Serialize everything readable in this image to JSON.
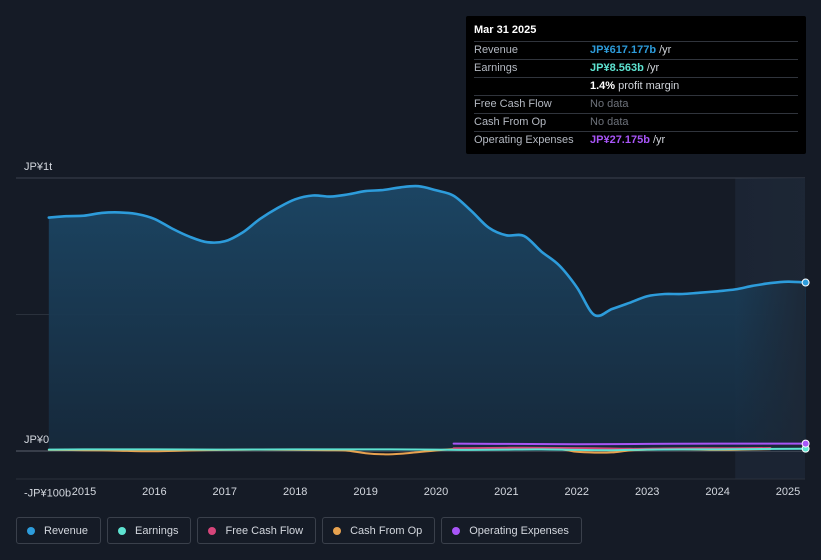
{
  "tooltip": {
    "date": "Mar 31 2025",
    "rows": [
      {
        "label": "Revenue",
        "value": "JP¥617.177b",
        "unit": " /yr",
        "color": "#2d9cdb"
      },
      {
        "label": "Earnings",
        "value": "JP¥8.563b",
        "unit": " /yr",
        "color": "#5ee3d1"
      },
      {
        "label": "",
        "value": "1.4%",
        "unit": " profit margin",
        "color": "#ffffff"
      },
      {
        "label": "Free Cash Flow",
        "value": "No data",
        "unit": "",
        "color": "#6d727b"
      },
      {
        "label": "Cash From Op",
        "value": "No data",
        "unit": "",
        "color": "#6d727b"
      },
      {
        "label": "Operating Expenses",
        "value": "JP¥27.175b",
        "unit": " /yr",
        "color": "#a855f7"
      }
    ]
  },
  "legend": [
    {
      "label": "Revenue",
      "color": "#2d9cdb"
    },
    {
      "label": "Earnings",
      "color": "#5ee3d1"
    },
    {
      "label": "Free Cash Flow",
      "color": "#d6457a"
    },
    {
      "label": "Cash From Op",
      "color": "#e8a24f"
    },
    {
      "label": "Operating Expenses",
      "color": "#a855f7"
    }
  ],
  "chart_data": {
    "type": "area",
    "y_tick_labels": [
      {
        "label": "JP¥1t",
        "value": 1000
      },
      {
        "label": "JP¥0",
        "value": 0
      },
      {
        "label": "-JP¥100b",
        "value": -100
      }
    ],
    "ylim": [
      -100,
      1000
    ],
    "x_ticks": [
      2015,
      2016,
      2017,
      2018,
      2019,
      2020,
      2021,
      2022,
      2023,
      2024,
      2025
    ],
    "xlim": [
      2014.5,
      2025.25
    ],
    "forecast_start": 2024.25,
    "series": [
      {
        "name": "Revenue",
        "color": "#2d9cdb",
        "fill": true,
        "points": [
          [
            2014.5,
            855
          ],
          [
            2014.75,
            860
          ],
          [
            2015,
            862
          ],
          [
            2015.25,
            872
          ],
          [
            2015.5,
            874
          ],
          [
            2015.75,
            868
          ],
          [
            2016,
            850
          ],
          [
            2016.25,
            815
          ],
          [
            2016.5,
            785
          ],
          [
            2016.75,
            765
          ],
          [
            2017,
            768
          ],
          [
            2017.25,
            800
          ],
          [
            2017.5,
            850
          ],
          [
            2017.75,
            890
          ],
          [
            2018,
            922
          ],
          [
            2018.25,
            936
          ],
          [
            2018.5,
            932
          ],
          [
            2018.75,
            940
          ],
          [
            2019,
            952
          ],
          [
            2019.25,
            956
          ],
          [
            2019.5,
            966
          ],
          [
            2019.75,
            970
          ],
          [
            2020,
            955
          ],
          [
            2020.25,
            935
          ],
          [
            2020.5,
            880
          ],
          [
            2020.75,
            818
          ],
          [
            2021,
            790
          ],
          [
            2021.25,
            788
          ],
          [
            2021.5,
            730
          ],
          [
            2021.75,
            680
          ],
          [
            2022,
            600
          ],
          [
            2022.25,
            498
          ],
          [
            2022.5,
            520
          ],
          [
            2022.75,
            543
          ],
          [
            2023,
            567
          ],
          [
            2023.25,
            575
          ],
          [
            2023.5,
            575
          ],
          [
            2023.75,
            580
          ],
          [
            2024,
            585
          ],
          [
            2024.25,
            592
          ],
          [
            2024.5,
            605
          ],
          [
            2024.75,
            615
          ],
          [
            2025,
            620
          ],
          [
            2025.25,
            617
          ]
        ]
      },
      {
        "name": "Earnings",
        "color": "#5ee3d1",
        "fill": false,
        "points": [
          [
            2014.5,
            5
          ],
          [
            2015,
            6
          ],
          [
            2016,
            6
          ],
          [
            2017,
            5
          ],
          [
            2018,
            6
          ],
          [
            2019,
            6
          ],
          [
            2020,
            5
          ],
          [
            2020.5,
            4
          ],
          [
            2021,
            5
          ],
          [
            2021.5,
            6
          ],
          [
            2022,
            4
          ],
          [
            2022.5,
            3
          ],
          [
            2023,
            5
          ],
          [
            2023.5,
            6
          ],
          [
            2024,
            6
          ],
          [
            2024.5,
            7
          ],
          [
            2025.25,
            8.5
          ]
        ]
      },
      {
        "name": "Free Cash Flow",
        "color": "#d6457a",
        "fill": false,
        "points": [
          [
            2020.25,
            10
          ],
          [
            2020.75,
            11
          ],
          [
            2021.25,
            12
          ],
          [
            2021.75,
            11
          ],
          [
            2022.25,
            10
          ],
          [
            2022.75,
            8
          ],
          [
            2023.25,
            9
          ],
          [
            2023.75,
            10
          ],
          [
            2024.25,
            10
          ],
          [
            2024.75,
            11
          ]
        ]
      },
      {
        "name": "Cash From Op",
        "color": "#e8a24f",
        "fill": false,
        "points": [
          [
            2014.5,
            4
          ],
          [
            2015,
            3
          ],
          [
            2015.5,
            1
          ],
          [
            2016,
            -1
          ],
          [
            2016.5,
            2
          ],
          [
            2017,
            4
          ],
          [
            2017.5,
            5
          ],
          [
            2018,
            4
          ],
          [
            2018.5,
            3
          ],
          [
            2018.75,
            1
          ],
          [
            2019,
            -8
          ],
          [
            2019.25,
            -12
          ],
          [
            2019.5,
            -10
          ],
          [
            2019.75,
            -4
          ],
          [
            2020,
            2
          ],
          [
            2020.25,
            7
          ],
          [
            2020.75,
            9
          ],
          [
            2021.25,
            10
          ],
          [
            2021.75,
            7
          ],
          [
            2022,
            -3
          ],
          [
            2022.25,
            -6
          ],
          [
            2022.5,
            -5
          ],
          [
            2022.75,
            2
          ],
          [
            2023,
            5
          ],
          [
            2023.5,
            6
          ],
          [
            2024,
            4
          ],
          [
            2024.5,
            6
          ],
          [
            2024.75,
            7
          ]
        ]
      },
      {
        "name": "Operating Expenses",
        "color": "#a855f7",
        "fill": false,
        "points": [
          [
            2020.25,
            27
          ],
          [
            2021,
            26
          ],
          [
            2022,
            25
          ],
          [
            2023,
            26
          ],
          [
            2024,
            27
          ],
          [
            2025.25,
            27.2
          ]
        ]
      }
    ]
  }
}
